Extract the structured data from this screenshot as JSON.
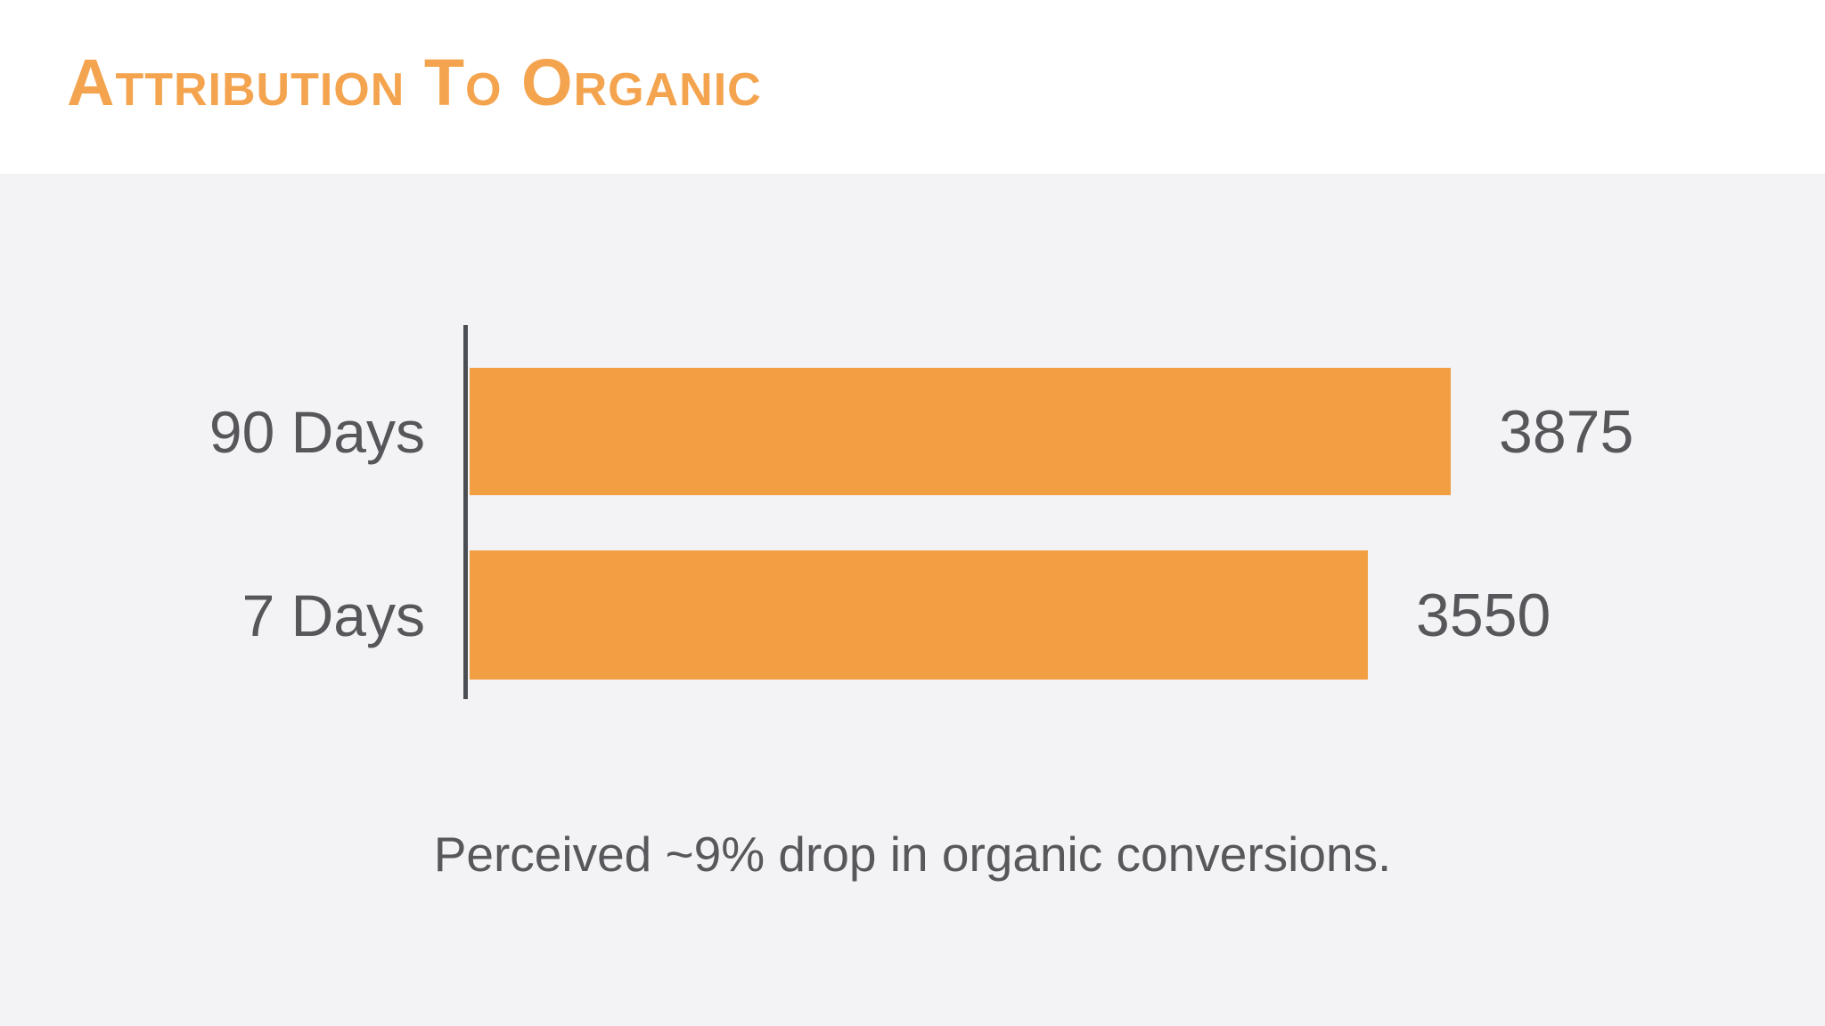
{
  "header": {
    "title": "Attribution To Organic",
    "title_color": "#f4a44f"
  },
  "chart_data": {
    "type": "bar",
    "orientation": "horizontal",
    "title": "Attribution To Organic",
    "categories": [
      "90 Days",
      "7 Days"
    ],
    "values": [
      3875,
      3550
    ],
    "value_labels": [
      "3875",
      "3550"
    ],
    "xlabel": "",
    "ylabel": "",
    "xlim": [
      0,
      4000
    ],
    "grid": false,
    "legend": false,
    "bar_color": "#f19f42",
    "axis_color": "#4a4e53",
    "text_color": "#56565b",
    "caption": "Perceived ~9% drop in organic conversions."
  }
}
